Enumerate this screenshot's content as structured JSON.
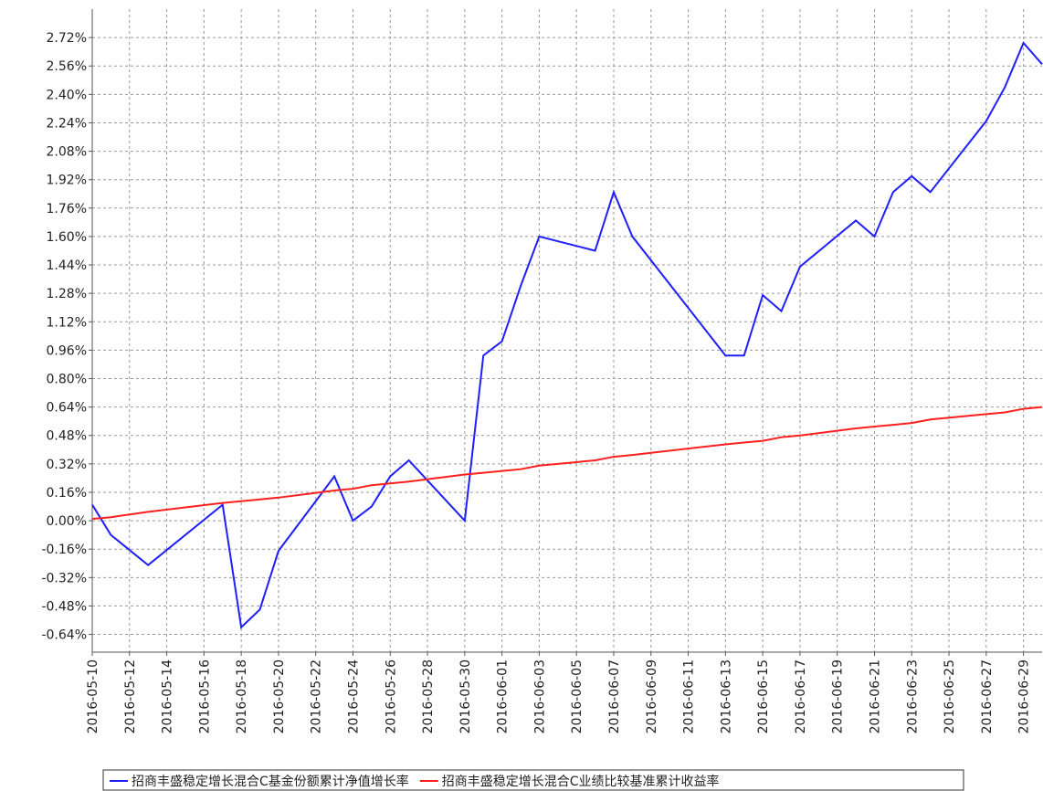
{
  "chart_data": {
    "type": "line",
    "x": [
      "2016-05-10",
      "2016-05-11",
      "2016-05-13",
      "2016-05-17",
      "2016-05-18",
      "2016-05-19",
      "2016-05-20",
      "2016-05-23",
      "2016-05-24",
      "2016-05-25",
      "2016-05-26",
      "2016-05-27",
      "2016-05-30",
      "2016-05-31",
      "2016-06-01",
      "2016-06-02",
      "2016-06-03",
      "2016-06-06",
      "2016-06-07",
      "2016-06-08",
      "2016-06-13",
      "2016-06-14",
      "2016-06-15",
      "2016-06-16",
      "2016-06-17",
      "2016-06-20",
      "2016-06-21",
      "2016-06-22",
      "2016-06-23",
      "2016-06-24",
      "2016-06-27",
      "2016-06-28",
      "2016-06-29",
      "2016-06-30"
    ],
    "series": [
      {
        "name": "招商丰盛稳定增长混合C基金份额累计净值增长率",
        "color": "#1f1fff",
        "values": [
          0.09,
          -0.08,
          -0.25,
          0.09,
          -0.6,
          -0.5,
          -0.17,
          0.25,
          0.0,
          0.08,
          0.25,
          0.34,
          0.0,
          0.93,
          1.01,
          1.32,
          1.6,
          1.52,
          1.85,
          1.6,
          0.93,
          0.93,
          1.27,
          1.18,
          1.43,
          1.69,
          1.6,
          1.85,
          1.94,
          1.85,
          2.25,
          2.44,
          2.69,
          2.57
        ]
      },
      {
        "name": "招商丰盛稳定增长混合C业绩比较基准累计收益率",
        "color": "#ff1f1f",
        "values": [
          0.01,
          0.02,
          0.05,
          0.1,
          0.11,
          0.12,
          0.13,
          0.17,
          0.18,
          0.2,
          0.21,
          0.22,
          0.26,
          0.27,
          0.28,
          0.29,
          0.31,
          0.34,
          0.36,
          0.37,
          0.43,
          0.44,
          0.45,
          0.47,
          0.48,
          0.52,
          0.53,
          0.54,
          0.55,
          0.57,
          0.6,
          0.61,
          0.63,
          0.64
        ]
      }
    ],
    "xlim": [
      "2016-05-10",
      "2016-06-30"
    ],
    "xticks": [
      "2016-05-10",
      "2016-05-12",
      "2016-05-14",
      "2016-05-16",
      "2016-05-18",
      "2016-05-20",
      "2016-05-22",
      "2016-05-24",
      "2016-05-26",
      "2016-05-28",
      "2016-05-30",
      "2016-06-01",
      "2016-06-03",
      "2016-06-05",
      "2016-06-07",
      "2016-06-09",
      "2016-06-11",
      "2016-06-13",
      "2016-06-15",
      "2016-06-17",
      "2016-06-19",
      "2016-06-21",
      "2016-06-23",
      "2016-06-25",
      "2016-06-27",
      "2016-06-29"
    ],
    "ylim": [
      -0.74,
      2.88
    ],
    "yticks": [
      {
        "value": -0.64,
        "label": "-0.64%"
      },
      {
        "value": -0.48,
        "label": "-0.48%"
      },
      {
        "value": -0.32,
        "label": "-0.32%"
      },
      {
        "value": -0.16,
        "label": "-0.16%"
      },
      {
        "value": 0,
        "label": "0.00%"
      },
      {
        "value": 0.16,
        "label": "0.16%"
      },
      {
        "value": 0.32,
        "label": "0.32%"
      },
      {
        "value": 0.48,
        "label": "0.48%"
      },
      {
        "value": 0.64,
        "label": "0.64%"
      },
      {
        "value": 0.8,
        "label": "0.80%"
      },
      {
        "value": 0.96,
        "label": "0.96%"
      },
      {
        "value": 1.12,
        "label": "1.12%"
      },
      {
        "value": 1.28,
        "label": "1.28%"
      },
      {
        "value": 1.44,
        "label": "1.44%"
      },
      {
        "value": 1.6,
        "label": "1.60%"
      },
      {
        "value": 1.76,
        "label": "1.76%"
      },
      {
        "value": 1.92,
        "label": "1.92%"
      },
      {
        "value": 2.08,
        "label": "2.08%"
      },
      {
        "value": 2.24,
        "label": "2.24%"
      },
      {
        "value": 2.4,
        "label": "2.40%"
      },
      {
        "value": 2.56,
        "label": "2.56%"
      },
      {
        "value": 2.72,
        "label": "2.72%"
      }
    ],
    "grid": true
  }
}
